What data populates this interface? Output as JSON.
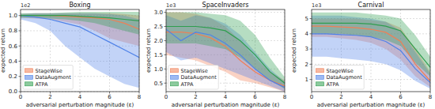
{
  "chart_data": [
    {
      "type": "line",
      "title": "Boxing",
      "x_label": "adversarial perturbation magnitude (ε)",
      "y_label": "expected return",
      "y_multiplier": "1e2",
      "x": [
        0,
        1,
        2,
        3,
        4,
        5,
        6,
        7,
        8
      ],
      "xlim": [
        0,
        8
      ],
      "xticks": [
        0,
        2,
        4,
        6,
        8
      ],
      "ylim": [
        0,
        1.08
      ],
      "yticks": [
        {
          "value": 0,
          "label": "0.0"
        },
        0.2,
        0.4,
        0.6,
        0.8,
        {
          "value": 1,
          "label": "1.0"
        }
      ],
      "grid": true,
      "legend": "lower left",
      "series": [
        {
          "name": "StageWise",
          "color": "#f07f55",
          "values": [
            1.0,
            1.0,
            1.0,
            0.99,
            0.98,
            0.97,
            0.95,
            0.9,
            0.82
          ],
          "lower": [
            0.97,
            0.96,
            0.95,
            0.92,
            0.88,
            0.8,
            0.7,
            0.65,
            0.6
          ],
          "upper": [
            1.02,
            1.03,
            1.03,
            1.03,
            1.03,
            1.03,
            1.03,
            1.02,
            1.0
          ]
        },
        {
          "name": "DataAugment",
          "color": "#4f82e8",
          "values": [
            1.0,
            0.98,
            0.95,
            0.9,
            0.85,
            0.75,
            0.65,
            0.55,
            0.45
          ],
          "lower": [
            0.95,
            0.9,
            0.8,
            0.6,
            0.45,
            0.3,
            0.2,
            0.1,
            0.05
          ],
          "upper": [
            1.02,
            1.03,
            1.03,
            1.03,
            1.03,
            1.03,
            1.02,
            1.0,
            0.95
          ]
        },
        {
          "name": "ATPA",
          "color": "#2f9e4f",
          "values": [
            1.0,
            1.0,
            1.0,
            1.0,
            0.99,
            0.98,
            0.97,
            0.95,
            0.93
          ],
          "lower": [
            0.97,
            0.97,
            0.96,
            0.95,
            0.93,
            0.9,
            0.85,
            0.8,
            0.75
          ],
          "upper": [
            1.03,
            1.03,
            1.03,
            1.04,
            1.05,
            1.05,
            1.05,
            1.05,
            1.05
          ]
        }
      ]
    },
    {
      "type": "line",
      "title": "SpaceInvaders",
      "x_label": "adversarial perturbation magnitude (ε)",
      "y_label": "expected return",
      "y_multiplier": "1e3",
      "x": [
        0,
        1,
        2,
        3,
        4,
        5,
        6,
        7,
        8
      ],
      "xlim": [
        0,
        8
      ],
      "xticks": [
        0,
        2,
        4,
        6,
        8
      ],
      "ylim": [
        0.2,
        3.1
      ],
      "yticks": [
        0.5,
        {
          "value": 1,
          "label": "1.0"
        },
        1.5,
        {
          "value": 2,
          "label": "2.0"
        },
        2.5,
        {
          "value": 3,
          "label": "3.0"
        }
      ],
      "grid": true,
      "legend": "lower left",
      "series": [
        {
          "name": "StageWise",
          "color": "#f07f55",
          "values": [
            2.3,
            2.3,
            2.25,
            2.1,
            1.8,
            1.3,
            0.9,
            0.6,
            0.4
          ],
          "lower": [
            1.5,
            1.4,
            1.3,
            1.1,
            0.9,
            0.6,
            0.5,
            0.35,
            0.2
          ],
          "upper": [
            3.0,
            3.0,
            2.95,
            2.8,
            2.5,
            2.0,
            1.4,
            0.9,
            0.6
          ]
        },
        {
          "name": "DataAugment",
          "color": "#4f82e8",
          "values": [
            2.4,
            2.0,
            2.3,
            2.2,
            1.9,
            1.5,
            1.0,
            0.6,
            0.35
          ],
          "lower": [
            1.6,
            1.3,
            1.4,
            1.2,
            1.0,
            0.8,
            0.6,
            0.4,
            0.2
          ],
          "upper": [
            2.9,
            2.7,
            2.9,
            2.8,
            2.6,
            2.2,
            1.6,
            1.0,
            0.55
          ]
        },
        {
          "name": "ATPA",
          "color": "#2f9e4f",
          "values": [
            2.5,
            2.5,
            2.5,
            2.45,
            2.35,
            2.0,
            1.5,
            0.9,
            0.5
          ],
          "lower": [
            1.9,
            1.9,
            1.9,
            1.8,
            1.7,
            1.4,
            1.0,
            0.6,
            0.3
          ],
          "upper": [
            3.0,
            3.0,
            3.0,
            2.95,
            2.9,
            2.7,
            2.2,
            1.4,
            0.7
          ]
        }
      ]
    },
    {
      "type": "line",
      "title": "Carnival",
      "x_label": "adversarial perturbation magnitude (ε)",
      "y_label": "expected return",
      "y_multiplier": "1e3",
      "x": [
        0,
        1,
        2,
        3,
        4,
        5,
        6,
        7,
        8
      ],
      "xlim": [
        0,
        8
      ],
      "xticks": [
        0,
        2,
        4,
        6,
        8
      ],
      "ylim": [
        0.2,
        5.6
      ],
      "yticks": [
        1,
        2,
        3,
        4,
        5
      ],
      "grid": true,
      "legend": "lower left",
      "series": [
        {
          "name": "StageWise",
          "color": "#f07f55",
          "values": [
            4.5,
            4.5,
            4.45,
            4.4,
            4.3,
            4.1,
            3.5,
            2.0,
            0.9
          ],
          "lower": [
            3.8,
            3.8,
            3.7,
            3.6,
            3.4,
            3.0,
            2.3,
            1.2,
            0.5
          ],
          "upper": [
            5.0,
            5.0,
            5.0,
            5.0,
            4.9,
            4.8,
            4.4,
            3.0,
            1.5
          ]
        },
        {
          "name": "DataAugment",
          "color": "#4f82e8",
          "values": [
            4.0,
            4.0,
            3.95,
            3.9,
            3.8,
            3.5,
            2.9,
            1.7,
            0.8
          ],
          "lower": [
            2.5,
            2.5,
            2.4,
            2.3,
            2.2,
            2.0,
            1.6,
            0.9,
            0.4
          ],
          "upper": [
            5.2,
            5.2,
            5.2,
            5.1,
            5.0,
            4.8,
            4.2,
            2.8,
            1.4
          ]
        },
        {
          "name": "ATPA",
          "color": "#2f9e4f",
          "values": [
            4.7,
            4.7,
            4.7,
            4.7,
            4.65,
            4.5,
            4.2,
            3.0,
            1.8
          ],
          "lower": [
            4.0,
            4.0,
            4.0,
            3.9,
            3.8,
            3.6,
            3.2,
            2.1,
            1.2
          ],
          "upper": [
            5.4,
            5.4,
            5.4,
            5.4,
            5.3,
            5.2,
            5.0,
            3.9,
            2.5
          ]
        }
      ]
    }
  ]
}
